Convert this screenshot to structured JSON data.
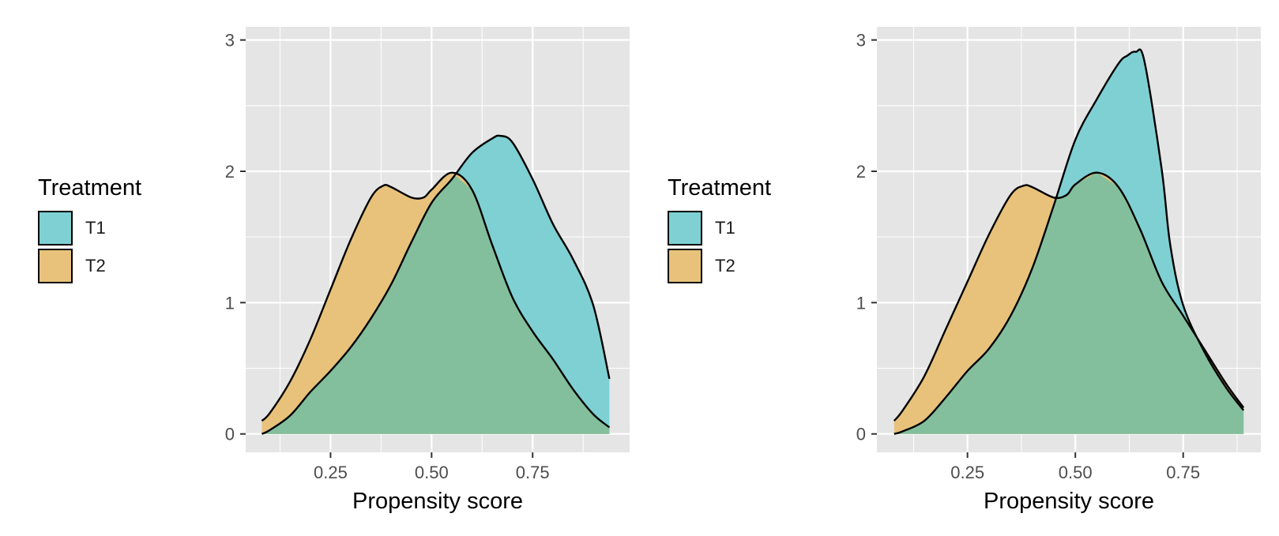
{
  "legend": {
    "title": "Treatment",
    "items": [
      {
        "label": "T1",
        "color": "#7ED0D3"
      },
      {
        "label": "T2",
        "color": "#E8C27B"
      }
    ]
  },
  "colors": {
    "panel_bg": "#E5E5E5",
    "grid": "#FFFFFF",
    "overlap": "#83BF9D",
    "outline": "#000000",
    "overlap_outline": "#1E4F55"
  },
  "chart_data": [
    {
      "type": "area",
      "chart_kind": "density",
      "xlabel": "Propensity score",
      "ylabel": "",
      "xlim": [
        0.04,
        0.99
      ],
      "ylim": [
        -0.14,
        3.1
      ],
      "xticks": [
        0.25,
        0.5,
        0.75
      ],
      "xtick_labels": [
        "0.25",
        "0.50",
        "0.75"
      ],
      "yticks": [
        0,
        1,
        2,
        3
      ],
      "ytick_labels": [
        "0",
        "1",
        "2",
        "3"
      ],
      "grid": true,
      "legend_position": "left",
      "series": [
        {
          "name": "T1",
          "x": [
            0.08,
            0.1,
            0.15,
            0.2,
            0.25,
            0.3,
            0.35,
            0.4,
            0.45,
            0.5,
            0.55,
            0.6,
            0.65,
            0.67,
            0.7,
            0.75,
            0.8,
            0.85,
            0.9,
            0.94
          ],
          "y": [
            0.0,
            0.03,
            0.14,
            0.32,
            0.48,
            0.66,
            0.88,
            1.14,
            1.46,
            1.76,
            1.94,
            2.14,
            2.25,
            2.27,
            2.22,
            1.94,
            1.6,
            1.33,
            0.98,
            0.42
          ]
        },
        {
          "name": "T2",
          "x": [
            0.08,
            0.1,
            0.15,
            0.2,
            0.25,
            0.3,
            0.35,
            0.38,
            0.4,
            0.45,
            0.48,
            0.5,
            0.55,
            0.6,
            0.65,
            0.7,
            0.75,
            0.8,
            0.85,
            0.9,
            0.94
          ],
          "y": [
            0.1,
            0.16,
            0.4,
            0.72,
            1.1,
            1.48,
            1.8,
            1.89,
            1.88,
            1.8,
            1.8,
            1.86,
            1.99,
            1.86,
            1.44,
            1.04,
            0.78,
            0.57,
            0.34,
            0.15,
            0.05
          ]
        }
      ]
    },
    {
      "type": "area",
      "chart_kind": "density",
      "xlabel": "Propensity score",
      "ylabel": "",
      "xlim": [
        0.04,
        0.93
      ],
      "ylim": [
        -0.14,
        3.1
      ],
      "xticks": [
        0.25,
        0.5,
        0.75
      ],
      "xtick_labels": [
        "0.25",
        "0.50",
        "0.75"
      ],
      "yticks": [
        0,
        1,
        2,
        3
      ],
      "ytick_labels": [
        "0",
        "1",
        "2",
        "3"
      ],
      "grid": true,
      "legend_position": "left",
      "series": [
        {
          "name": "T1",
          "x": [
            0.08,
            0.1,
            0.15,
            0.2,
            0.25,
            0.3,
            0.35,
            0.4,
            0.45,
            0.5,
            0.55,
            0.6,
            0.62,
            0.64,
            0.66,
            0.7,
            0.72,
            0.75,
            0.8,
            0.85,
            0.89
          ],
          "y": [
            0.0,
            0.02,
            0.1,
            0.28,
            0.48,
            0.65,
            0.9,
            1.26,
            1.74,
            2.24,
            2.55,
            2.82,
            2.88,
            2.91,
            2.84,
            2.02,
            1.44,
            0.98,
            0.62,
            0.35,
            0.18
          ]
        },
        {
          "name": "T2",
          "x": [
            0.08,
            0.1,
            0.15,
            0.2,
            0.25,
            0.3,
            0.35,
            0.38,
            0.4,
            0.45,
            0.48,
            0.5,
            0.55,
            0.6,
            0.65,
            0.7,
            0.75,
            0.8,
            0.85,
            0.89
          ],
          "y": [
            0.1,
            0.18,
            0.44,
            0.8,
            1.16,
            1.52,
            1.82,
            1.89,
            1.88,
            1.8,
            1.82,
            1.9,
            1.99,
            1.88,
            1.56,
            1.16,
            0.9,
            0.64,
            0.38,
            0.2
          ]
        }
      ]
    }
  ]
}
